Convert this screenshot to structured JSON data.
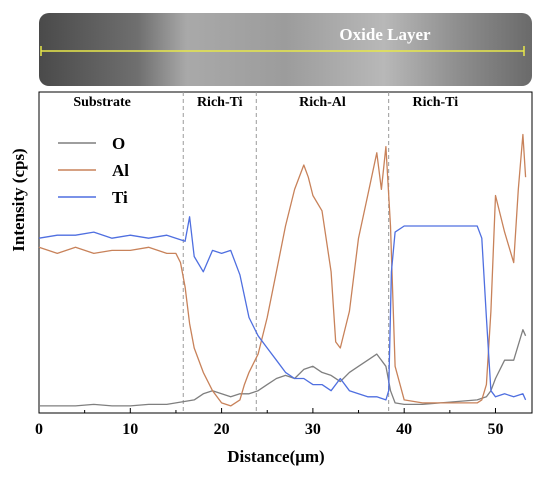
{
  "chart_data": {
    "type": "line",
    "xlabel": "Distance(μm)",
    "ylabel": "Intensity (cps)",
    "xlim": [
      0,
      54
    ],
    "ylim": [
      0,
      100
    ],
    "x_ticks": [
      0,
      10,
      20,
      30,
      40,
      50
    ],
    "y_ticks_labeled": false,
    "grid": false,
    "legend_position": "upper-left",
    "image_banner": {
      "label": "Oxide Layer",
      "description": "micrograph strip above plot with yellow scan line spanning full distance"
    },
    "regions": [
      {
        "label": "Substrate",
        "x_start": 0,
        "x_end": 15.8
      },
      {
        "label": "Rich-Ti",
        "x_start": 15.8,
        "x_end": 23.8
      },
      {
        "label": "Rich-Al",
        "x_start": 23.8,
        "x_end": 38.3
      },
      {
        "label": "Rich-Ti",
        "x_start": 38.3,
        "x_end": 54
      }
    ],
    "boundaries": [
      15.8,
      23.8,
      38.3
    ],
    "series": [
      {
        "name": "O",
        "color": "#7f7f7f",
        "x": [
          0,
          2,
          4,
          6,
          8,
          10,
          12,
          14,
          15,
          16,
          17,
          18,
          19,
          20,
          21,
          22,
          23,
          24,
          25,
          26,
          27,
          28,
          29,
          30,
          31,
          32,
          33,
          34,
          35,
          36,
          37,
          38,
          38.5,
          39,
          40,
          42,
          44,
          46,
          48,
          49,
          49.5,
          50,
          51,
          52,
          53,
          53.3
        ],
        "y": [
          1,
          1,
          1,
          1.5,
          1,
          1,
          1.5,
          1.5,
          2,
          2.5,
          3,
          5,
          6,
          5,
          4,
          5,
          5,
          6,
          8,
          10,
          11,
          10,
          13,
          14,
          12,
          11,
          9,
          12,
          14,
          16,
          18,
          14,
          6,
          2,
          1.5,
          1.5,
          2,
          2.5,
          3,
          4,
          6,
          10,
          16,
          16,
          26,
          24
        ]
      },
      {
        "name": "Al",
        "color": "#c8825a",
        "x": [
          0,
          2,
          4,
          6,
          8,
          10,
          12,
          14,
          15,
          15.5,
          16,
          16.5,
          17,
          18,
          19,
          20,
          21,
          22,
          22.5,
          23,
          24,
          25,
          26,
          27,
          28,
          29,
          29.5,
          30,
          31,
          32,
          32.5,
          33,
          34,
          35,
          36,
          37,
          37.5,
          38,
          38.5,
          39,
          40,
          42,
          44,
          46,
          48,
          48.5,
          49,
          49.5,
          50,
          51,
          52,
          52.5,
          53,
          53.3
        ],
        "y": [
          53,
          51,
          53,
          51,
          52,
          52,
          53,
          51,
          51,
          48,
          40,
          28,
          20,
          12,
          6,
          2,
          1,
          3,
          8,
          12,
          18,
          30,
          45,
          60,
          72,
          80,
          76,
          70,
          65,
          45,
          22,
          20,
          32,
          56,
          70,
          84,
          72,
          86,
          60,
          14,
          3,
          2,
          2,
          2,
          2,
          3,
          8,
          32,
          70,
          58,
          48,
          72,
          90,
          76
        ]
      },
      {
        "name": "Ti",
        "color": "#4f6fe0",
        "x": [
          0,
          2,
          4,
          6,
          8,
          10,
          12,
          14,
          15,
          16,
          16.5,
          17,
          18,
          19,
          20,
          21,
          22,
          23,
          24,
          25,
          26,
          27,
          28,
          29,
          30,
          31,
          32,
          33,
          34,
          35,
          36,
          37,
          38,
          38.3,
          38.6,
          39,
          40,
          42,
          44,
          46,
          48,
          48.5,
          49,
          49.5,
          50,
          51,
          52,
          53,
          53.3
        ],
        "y": [
          56,
          57,
          57,
          58,
          56,
          57,
          56,
          57,
          56,
          55,
          63,
          50,
          45,
          52,
          51,
          52,
          44,
          30,
          24,
          20,
          16,
          12,
          10,
          10,
          8,
          8,
          6,
          10,
          6,
          5,
          4,
          4,
          3,
          6,
          45,
          58,
          60,
          60,
          60,
          60,
          60,
          56,
          30,
          6,
          4,
          5,
          4,
          5,
          3
        ]
      }
    ]
  }
}
